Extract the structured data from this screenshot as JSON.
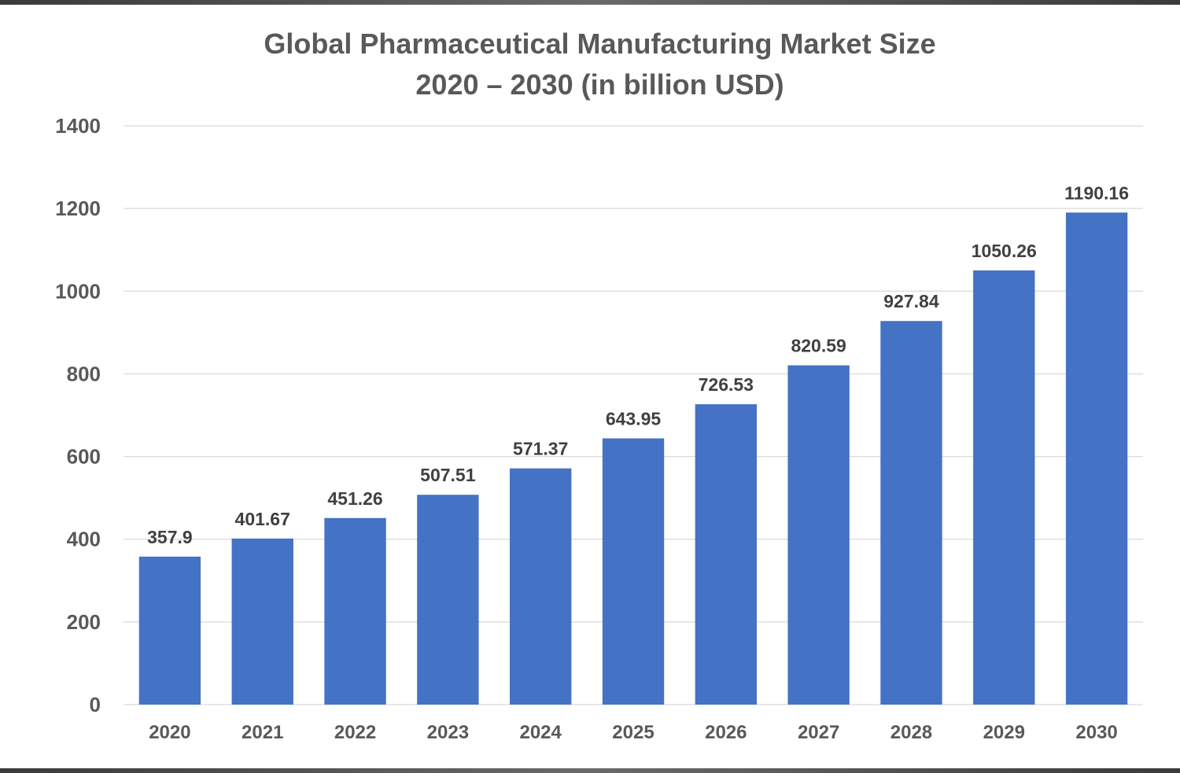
{
  "chart_data": {
    "type": "bar",
    "title": "Global Pharmaceutical Manufacturing Market Size",
    "subtitle": "2020 – 2030 (in billion USD)",
    "categories": [
      "2020",
      "2021",
      "2022",
      "2023",
      "2024",
      "2025",
      "2026",
      "2027",
      "2028",
      "2029",
      "2030"
    ],
    "values": [
      357.9,
      401.67,
      451.26,
      507.51,
      571.37,
      643.95,
      726.53,
      820.59,
      927.84,
      1050.26,
      1190.16
    ],
    "value_labels": [
      "357.9",
      "401.67",
      "451.26",
      "507.51",
      "571.37",
      "643.95",
      "726.53",
      "820.59",
      "927.84",
      "1050.26",
      "1190.16"
    ],
    "xlabel": "",
    "ylabel": "",
    "ylim": [
      0,
      1400
    ],
    "yticks": [
      0,
      200,
      400,
      600,
      800,
      1000,
      1200,
      1400
    ],
    "grid": true,
    "legend": "none",
    "bar_color": "#4472C4"
  }
}
